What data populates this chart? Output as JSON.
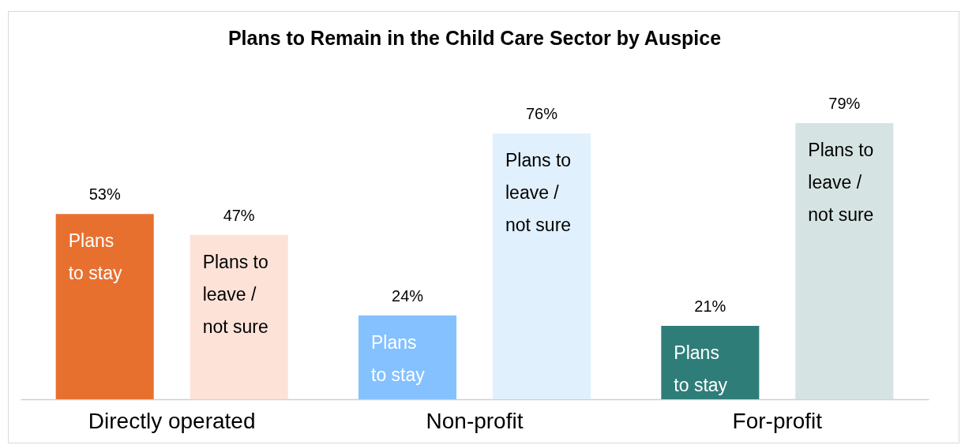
{
  "chart_data": {
    "type": "bar",
    "title": "Plans to Remain in the Child Care Sector by Auspice",
    "categories": [
      "Directly operated",
      "Non-profit",
      "For-profit"
    ],
    "series": [
      {
        "name": "Plans to stay",
        "colors": [
          "#e8702f",
          "#85c1ff",
          "#2f7d79"
        ],
        "values": [
          53,
          24,
          21
        ],
        "value_labels": [
          "53%",
          "24%",
          "21%"
        ]
      },
      {
        "name": "Plans to leave / not sure",
        "colors": [
          "#fde2d8",
          "#e1f0fd",
          "#d5e4e2"
        ],
        "values": [
          47,
          76,
          79
        ],
        "value_labels": [
          "47%",
          "76%",
          "79%"
        ]
      }
    ]
  }
}
